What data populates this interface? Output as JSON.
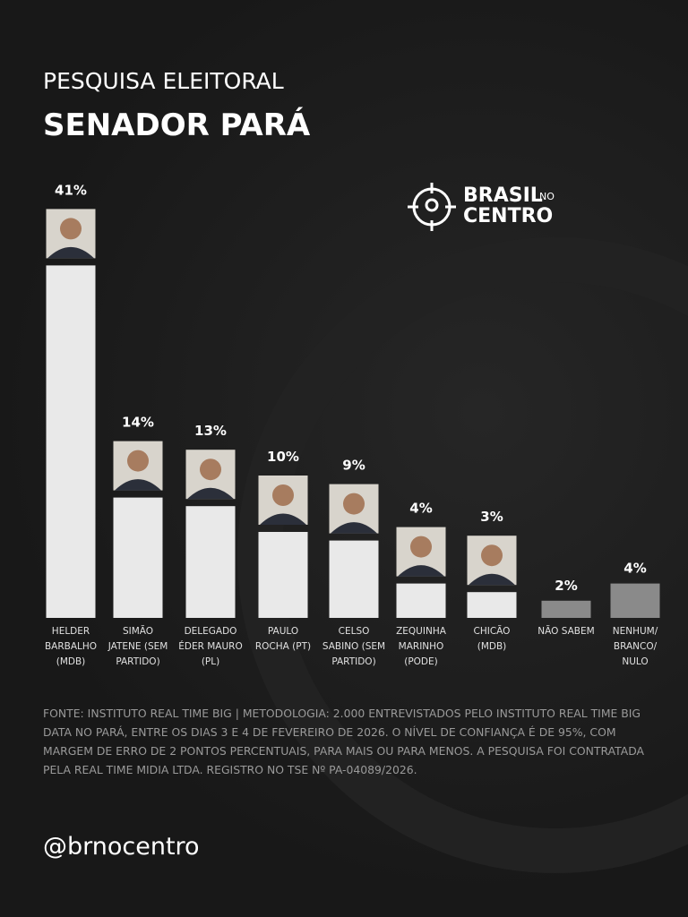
{
  "chart_data": {
    "type": "bar",
    "subtitle": "PESQUISA ELEITORAL",
    "title": "SENADOR PARÁ",
    "categories": [
      "HELDER BARBALHO (MDB)",
      "SIMÃO JATENE (SEM PARTIDO)",
      "DELEGADO ÉDER MAURO (PL)",
      "PAULO ROCHA (PT)",
      "CELSO SABINO (SEM PARTIDO)",
      "ZEQUINHA MARINHO (PODE)",
      "CHICÃO (MDB)",
      "NÃO SABEM",
      "NENHUM/ BRANCO/ NULO"
    ],
    "values": [
      41,
      14,
      13,
      10,
      9,
      4,
      3,
      2,
      4
    ],
    "value_labels": [
      "41%",
      "14%",
      "13%",
      "10%",
      "9%",
      "4%",
      "3%",
      "2%",
      "4%"
    ],
    "colors": [
      "#e9e9e9",
      "#e9e9e9",
      "#e9e9e9",
      "#e9e9e9",
      "#e9e9e9",
      "#e9e9e9",
      "#e9e9e9",
      "#8a8a8a",
      "#8a8a8a"
    ],
    "photos": [
      true,
      true,
      true,
      true,
      true,
      true,
      true,
      false,
      false
    ]
  },
  "logo": {
    "line1": "BRASIL",
    "small": "NO",
    "line2": "CENTRO"
  },
  "source": "FONTE: INSTITUTO REAL TIME BIG | METODOLOGIA: 2.000 ENTREVISTADOS PELO INSTITUTO REAL TIME BIG DATA NO PARÁ, ENTRE OS DIAS 3 E 4 DE FEVEREIRO DE 2026. O NÍVEL DE CONFIANÇA É DE 95%, COM MARGEM DE ERRO DE 2 PONTOS PERCENTUAIS, PARA MAIS OU PARA MENOS. A PESQUISA FOI CONTRATADA PELA REAL TIME MIDIA LTDA. REGISTRO NO TSE Nº PA-04089/2026.",
  "handle": "@brnocentro"
}
